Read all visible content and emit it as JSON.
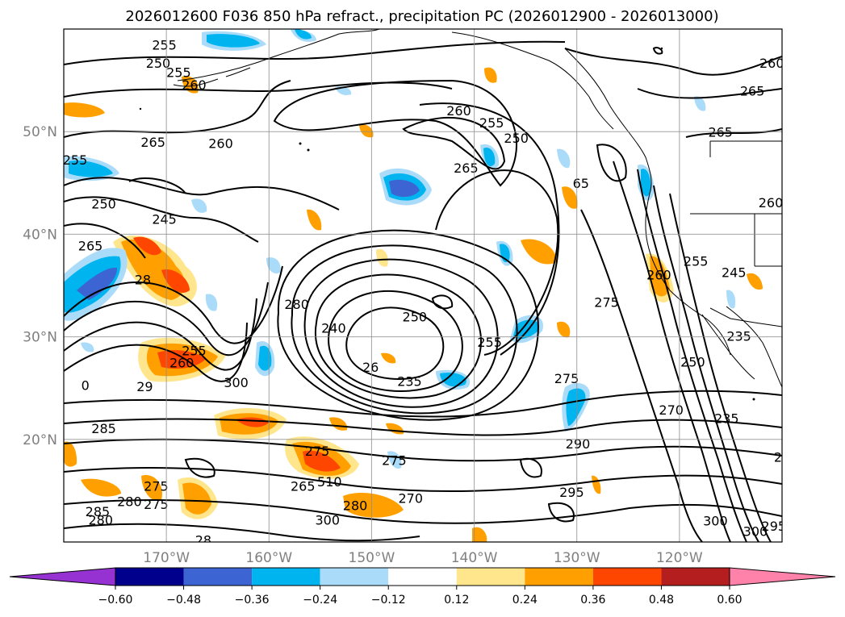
{
  "title": "2026012600 F036 850 hPa refract., precipitation PC (2026012900 - 2026013000)",
  "colors": {
    "lt_blue": "#aadcfa",
    "cyan": "#00b4f0",
    "mid_blue": "#3c64d2",
    "navy": "#00008c",
    "purple": "#9632d2",
    "yellow": "#ffe68c",
    "orange": "#ffa000",
    "red_orange": "#ff4600",
    "dark_red": "#b41e1e",
    "pink": "#ff82aa"
  },
  "map": {
    "lon_range": [
      -180,
      -110
    ],
    "lat_range": [
      10,
      60
    ],
    "lat_labels": [
      {
        "lat": 50,
        "text": "50°N"
      },
      {
        "lat": 40,
        "text": "40°N"
      },
      {
        "lat": 30,
        "text": "30°N"
      },
      {
        "lat": 20,
        "text": "20°N"
      }
    ],
    "lon_labels": [
      {
        "lon": -170,
        "text": "170°W"
      },
      {
        "lon": -160,
        "text": "160°W"
      },
      {
        "lon": -150,
        "text": "150°W"
      },
      {
        "lon": -140,
        "text": "140°W"
      },
      {
        "lon": -130,
        "text": "130°W"
      },
      {
        "lon": -120,
        "text": "120°W"
      }
    ],
    "contour_labels": [
      {
        "lon": -170.2,
        "lat": 58.4,
        "text": "255"
      },
      {
        "lon": -170.8,
        "lat": 56.6,
        "text": "250"
      },
      {
        "lon": -168.8,
        "lat": 55.7,
        "text": "255"
      },
      {
        "lon": -167.3,
        "lat": 54.5,
        "text": "260"
      },
      {
        "lon": -171.3,
        "lat": 48.9,
        "text": "265"
      },
      {
        "lon": -164.7,
        "lat": 48.8,
        "text": "260"
      },
      {
        "lon": -178.9,
        "lat": 47.2,
        "text": "255"
      },
      {
        "lon": -176.1,
        "lat": 42.9,
        "text": "250"
      },
      {
        "lon": -170.2,
        "lat": 41.4,
        "text": "245"
      },
      {
        "lon": -177.4,
        "lat": 38.8,
        "text": "265"
      },
      {
        "lon": -172.3,
        "lat": 35.5,
        "text": "28"
      },
      {
        "lon": -141.5,
        "lat": 52.0,
        "text": "260"
      },
      {
        "lon": -138.3,
        "lat": 50.8,
        "text": "255"
      },
      {
        "lon": -135.9,
        "lat": 49.3,
        "text": "250"
      },
      {
        "lon": -140.8,
        "lat": 46.4,
        "text": "265"
      },
      {
        "lon": -157.3,
        "lat": 33.1,
        "text": "280"
      },
      {
        "lon": -153.7,
        "lat": 30.8,
        "text": "240"
      },
      {
        "lon": -145.8,
        "lat": 31.9,
        "text": "250"
      },
      {
        "lon": -150.1,
        "lat": 27.0,
        "text": "26"
      },
      {
        "lon": -146.3,
        "lat": 25.6,
        "text": "235"
      },
      {
        "lon": -138.5,
        "lat": 29.4,
        "text": "255"
      },
      {
        "lon": -131.0,
        "lat": 25.9,
        "text": "275"
      },
      {
        "lon": -129.6,
        "lat": 44.9,
        "text": "65"
      },
      {
        "lon": -127.1,
        "lat": 33.3,
        "text": "275"
      },
      {
        "lon": -118.4,
        "lat": 37.3,
        "text": "255"
      },
      {
        "lon": -114.7,
        "lat": 36.2,
        "text": "245"
      },
      {
        "lon": -122.0,
        "lat": 36.0,
        "text": "260"
      },
      {
        "lon": -114.2,
        "lat": 30.0,
        "text": "235"
      },
      {
        "lon": -118.7,
        "lat": 27.5,
        "text": "250"
      },
      {
        "lon": -115.4,
        "lat": 22.0,
        "text": "235"
      },
      {
        "lon": -120.8,
        "lat": 22.8,
        "text": "270"
      },
      {
        "lon": -111.0,
        "lat": 56.6,
        "text": "260"
      },
      {
        "lon": -112.9,
        "lat": 53.9,
        "text": "265"
      },
      {
        "lon": -116.0,
        "lat": 49.9,
        "text": "265"
      },
      {
        "lon": -111.1,
        "lat": 43.0,
        "text": "260"
      },
      {
        "lon": -110.4,
        "lat": 18.2,
        "text": "2"
      },
      {
        "lon": -177.9,
        "lat": 25.2,
        "text": "0"
      },
      {
        "lon": -168.5,
        "lat": 27.4,
        "text": "260"
      },
      {
        "lon": -167.3,
        "lat": 28.6,
        "text": "255"
      },
      {
        "lon": -172.1,
        "lat": 25.1,
        "text": "29"
      },
      {
        "lon": -163.2,
        "lat": 25.5,
        "text": "300"
      },
      {
        "lon": -176.1,
        "lat": 21.0,
        "text": "285"
      },
      {
        "lon": -171.0,
        "lat": 15.4,
        "text": "275"
      },
      {
        "lon": -176.7,
        "lat": 12.9,
        "text": "285"
      },
      {
        "lon": -176.4,
        "lat": 12.1,
        "text": "280"
      },
      {
        "lon": -173.6,
        "lat": 13.9,
        "text": "280"
      },
      {
        "lon": -171.0,
        "lat": 13.6,
        "text": "275"
      },
      {
        "lon": -166.4,
        "lat": 10.1,
        "text": "28"
      },
      {
        "lon": -155.3,
        "lat": 18.8,
        "text": "275"
      },
      {
        "lon": -156.7,
        "lat": 15.4,
        "text": "265"
      },
      {
        "lon": -154.1,
        "lat": 15.8,
        "text": "510"
      },
      {
        "lon": -147.8,
        "lat": 17.9,
        "text": "275"
      },
      {
        "lon": -151.6,
        "lat": 13.5,
        "text": "280"
      },
      {
        "lon": -146.2,
        "lat": 14.2,
        "text": "270"
      },
      {
        "lon": -154.3,
        "lat": 12.1,
        "text": "300"
      },
      {
        "lon": -130.5,
        "lat": 14.8,
        "text": "295"
      },
      {
        "lon": -129.9,
        "lat": 19.5,
        "text": "290"
      },
      {
        "lon": -116.5,
        "lat": 12.0,
        "text": "300"
      },
      {
        "lon": -112.6,
        "lat": 11.0,
        "text": "300"
      },
      {
        "lon": -110.8,
        "lat": 11.5,
        "text": "295"
      }
    ]
  },
  "colorbar": {
    "boundaries": [
      -0.6,
      -0.48,
      -0.36,
      -0.24,
      -0.12,
      0.12,
      0.24,
      0.36,
      0.48,
      0.6
    ],
    "tick_labels": [
      "−0.60",
      "−0.48",
      "−0.36",
      "−0.24",
      "−0.12",
      "0.12",
      "0.24",
      "0.36",
      "0.48",
      "0.60"
    ],
    "colors": [
      "#9632d2",
      "#00008c",
      "#3c64d2",
      "#00b4f0",
      "#aadcfa",
      "#ffffff",
      "#ffe68c",
      "#ffa000",
      "#ff4600",
      "#b41e1e",
      "#ff82aa"
    ]
  }
}
